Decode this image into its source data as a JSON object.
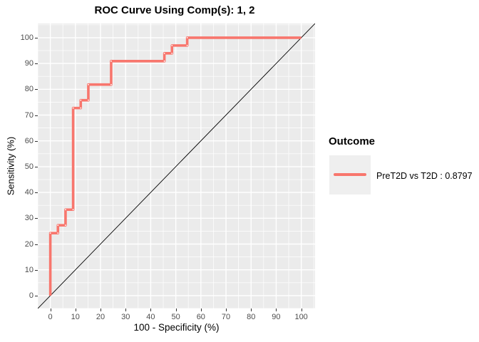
{
  "title": "ROC Curve Using Comp(s): 1, 2",
  "legend": {
    "title": "Outcome",
    "entries": [
      {
        "label": "PreT2D vs T2D : 0.8797",
        "color": "#F8766D"
      }
    ]
  },
  "colors": {
    "curve": "#F8766D",
    "panel_bg": "#EBEBEB",
    "grid": "#FFFFFF",
    "diagonal": "#000000",
    "tick_text": "#4D4D4D",
    "legend_key_bg": "#EFEFEF",
    "point_marker": "#FFFFFF"
  },
  "chart_data": {
    "type": "line",
    "title": "ROC Curve Using Comp(s): 1, 2",
    "xlabel": "100 - Specificity (%)",
    "ylabel": "Sensitivity (%)",
    "xlim": [
      -5,
      105.5
    ],
    "ylim": [
      -5,
      105.5
    ],
    "x_ticks": [
      0,
      10,
      20,
      30,
      40,
      50,
      60,
      70,
      80,
      90,
      100
    ],
    "y_ticks": [
      0,
      10,
      20,
      30,
      40,
      50,
      60,
      70,
      80,
      90,
      100
    ],
    "minor_grid_step": 5,
    "grid": "major and minor white gridlines on gray panel",
    "legend_position": "right",
    "auc": 0.8797,
    "series": [
      {
        "name": "PreT2D vs T2D : 0.8797",
        "color": "#F8766D",
        "points": [
          [
            0,
            0
          ],
          [
            0,
            24.24
          ],
          [
            3.03,
            24.24
          ],
          [
            3.03,
            27.27
          ],
          [
            6.06,
            27.27
          ],
          [
            6.06,
            33.33
          ],
          [
            9.09,
            33.33
          ],
          [
            9.09,
            72.73
          ],
          [
            12.12,
            72.73
          ],
          [
            12.12,
            75.76
          ],
          [
            15.15,
            75.76
          ],
          [
            15.15,
            81.82
          ],
          [
            24.24,
            81.82
          ],
          [
            24.24,
            90.91
          ],
          [
            45.45,
            90.91
          ],
          [
            45.45,
            93.94
          ],
          [
            48.48,
            93.94
          ],
          [
            48.48,
            96.97
          ],
          [
            54.55,
            96.97
          ],
          [
            54.55,
            100
          ],
          [
            100,
            100
          ]
        ]
      }
    ],
    "reference_line": {
      "name": "chance-diagonal",
      "from": [
        0,
        0
      ],
      "to": [
        100,
        100
      ],
      "color": "#000000"
    }
  }
}
